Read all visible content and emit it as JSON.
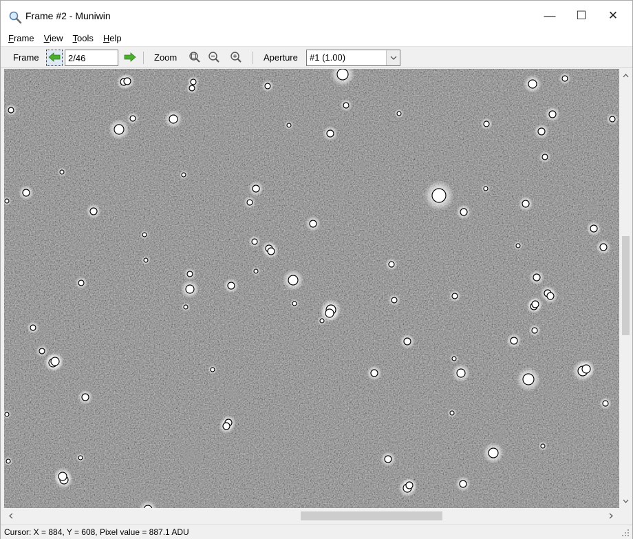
{
  "window": {
    "title": "Frame #2 - Muniwin",
    "icon": "magnifier-icon",
    "controls": {
      "minimize": "—",
      "maximize": "☐",
      "close": "✕"
    }
  },
  "menu": {
    "items": [
      {
        "label": "Frame",
        "underline": "F",
        "rest": "rame"
      },
      {
        "label": "View",
        "underline": "V",
        "rest": "iew"
      },
      {
        "label": "Tools",
        "underline": "T",
        "rest": "ools"
      },
      {
        "label": "Help",
        "underline": "H",
        "rest": "elp"
      }
    ]
  },
  "toolbar": {
    "frame_label": "Frame",
    "frame_value": "2/46",
    "zoom_label": "Zoom",
    "aperture_label": "Aperture",
    "aperture_value": "#1 (1.00)",
    "prev_icon": "green-left-arrow-icon",
    "next_icon": "green-right-arrow-icon",
    "zoom_icons": [
      "zoom-fit-icon",
      "zoom-out-icon",
      "zoom-in-icon"
    ]
  },
  "status": {
    "text": "Cursor: X = 884, Y = 608, Pixel value = 887.1 ADU"
  },
  "colors": {
    "arrow_green": "#4caf2f",
    "sky_background": "#2c2c2c",
    "star_marker": "#ffffff"
  }
}
